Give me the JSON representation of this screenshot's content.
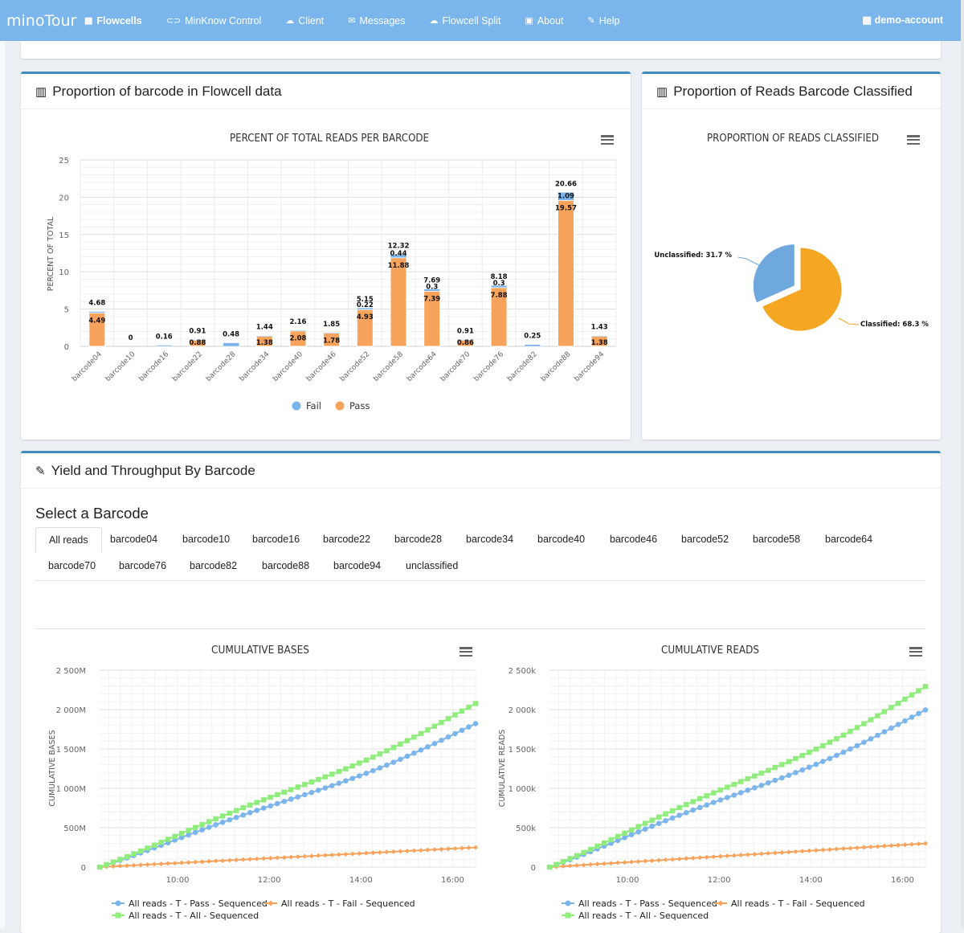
{
  "nav": {
    "brand": "minoTour",
    "items": [
      {
        "label": "Flowcells",
        "icon": "grid-icon",
        "glyph": "▦"
      },
      {
        "label": "MinKnow Control",
        "icon": "gamepad-icon",
        "glyph": "⊂⊃"
      },
      {
        "label": "Client",
        "icon": "cloud-download-icon",
        "glyph": "☁"
      },
      {
        "label": "Messages",
        "icon": "envelope-icon",
        "glyph": "✉"
      },
      {
        "label": "Flowcell Split",
        "icon": "cloud-upload-icon",
        "glyph": "☁"
      },
      {
        "label": "About",
        "icon": "book-icon",
        "glyph": "▣"
      },
      {
        "label": "Help",
        "icon": "magic-wand-icon",
        "glyph": "✎"
      }
    ],
    "account": "demo-account",
    "account_glyph": "▦"
  },
  "panels": {
    "barcode_proportion": {
      "title": "Proportion of barcode in Flowcell data",
      "icon": "bar-chart-icon",
      "glyph": "▥"
    },
    "reads_classified": {
      "title": "Proportion of Reads Barcode Classified",
      "icon": "bar-chart-icon",
      "glyph": "▥"
    },
    "yield": {
      "title": "Yield and Throughput By Barcode",
      "icon": "edit-icon",
      "glyph": "✎"
    }
  },
  "select_heading": "Select a Barcode",
  "tabs": [
    "All reads",
    "barcode04",
    "barcode10",
    "barcode16",
    "barcode22",
    "barcode28",
    "barcode34",
    "barcode40",
    "barcode46",
    "barcode52",
    "barcode58",
    "barcode64",
    "barcode70",
    "barcode76",
    "barcode82",
    "barcode88",
    "barcode94",
    "unclassified"
  ],
  "colors": {
    "fail": "#7cb5ec",
    "pass": "#f7a35c",
    "all": "#90ed7d",
    "pie_classified": "#f5a623",
    "pie_unclassified": "#6fa8dc"
  },
  "chart_data": [
    {
      "type": "bar",
      "title": "PERCENT OF TOTAL READS PER BARCODE",
      "ylabel": "PERCENT OF TOTAL",
      "ylim": [
        0,
        25
      ],
      "yticks": [
        "0",
        "5",
        "10",
        "15",
        "20",
        "25"
      ],
      "stacked": true,
      "categories": [
        "barcode04",
        "barcode10",
        "barcode16",
        "barcode22",
        "barcode28",
        "barcode34",
        "barcode40",
        "barcode46",
        "barcode52",
        "barcode58",
        "barcode64",
        "barcode70",
        "barcode76",
        "barcode82",
        "barcode88",
        "barcode94"
      ],
      "series": [
        {
          "name": "Fail",
          "values": [
            0.19,
            0,
            0.16,
            0.03,
            0.48,
            0.06,
            0.08,
            0.07,
            0.22,
            0.44,
            0.3,
            0.05,
            0.3,
            0.25,
            1.09,
            0.05
          ]
        },
        {
          "name": "Pass",
          "values": [
            4.49,
            0,
            0,
            0.88,
            0,
            1.38,
            2.08,
            1.78,
            4.93,
            11.88,
            7.39,
            0.86,
            7.88,
            0,
            19.57,
            1.38
          ]
        }
      ],
      "totals": [
        "4.68",
        "0",
        "0.16",
        "0.91",
        "0.48",
        "1.44",
        "2.16",
        "1.85",
        "5.15",
        "12.32",
        "7.69",
        "0.91",
        "8.18",
        "0.25",
        "20.66",
        "1.43"
      ],
      "fail_labels": [
        "",
        "",
        "",
        "",
        "",
        "",
        "",
        "",
        "0.22",
        "0.44",
        "0.3",
        "",
        "0.3",
        "",
        "1.09",
        ""
      ],
      "pass_labels": [
        "4.49",
        "",
        "",
        "0.88",
        "",
        "1.38",
        "2.08",
        "1.78",
        "4.93",
        "11.88",
        "7.39",
        "0.86",
        "7.88",
        "",
        "19.57",
        "1.38"
      ],
      "legend": [
        "Fail",
        "Pass"
      ],
      "legend_position": "bottom"
    },
    {
      "type": "pie",
      "title": "PROPORTION OF READS CLASSIFIED",
      "slices": [
        {
          "name": "Classified",
          "value": 68.3,
          "label": "Classified: 68.3 %"
        },
        {
          "name": "Unclassified",
          "value": 31.7,
          "label": "Unclassified: 31.7 %"
        }
      ]
    },
    {
      "type": "line",
      "title": "CUMULATIVE BASES",
      "ylabel": "CUMULATIVE BASES",
      "yticks": [
        "0",
        "500M",
        "1 000M",
        "1 500M",
        "2 000M",
        "2 500M"
      ],
      "ylim": [
        0,
        2500
      ],
      "xticks": [
        "10:00",
        "12:00",
        "14:00",
        "16:00"
      ],
      "xrange_hours": [
        8.3,
        16.5
      ],
      "series": [
        {
          "name": "All reads - T - Pass - Sequenced",
          "end": 1780
        },
        {
          "name": "All reads - T - Fail - Sequenced",
          "end": 250
        },
        {
          "name": "All reads - T - All - Sequenced",
          "end": 2030
        }
      ]
    },
    {
      "type": "line",
      "title": "CUMULATIVE READS",
      "ylabel": "CUMULATIVE READS",
      "yticks": [
        "0",
        "500k",
        "1 000k",
        "1 500k",
        "2 000k",
        "2 500k"
      ],
      "ylim": [
        0,
        2500
      ],
      "xticks": [
        "10:00",
        "12:00",
        "14:00",
        "16:00"
      ],
      "xrange_hours": [
        8.3,
        16.5
      ],
      "series": [
        {
          "name": "All reads - T - Pass - Sequenced",
          "end": 1950
        },
        {
          "name": "All reads - T - Fail - Sequenced",
          "end": 300
        },
        {
          "name": "All reads - T - All - Sequenced",
          "end": 2240
        }
      ]
    }
  ]
}
